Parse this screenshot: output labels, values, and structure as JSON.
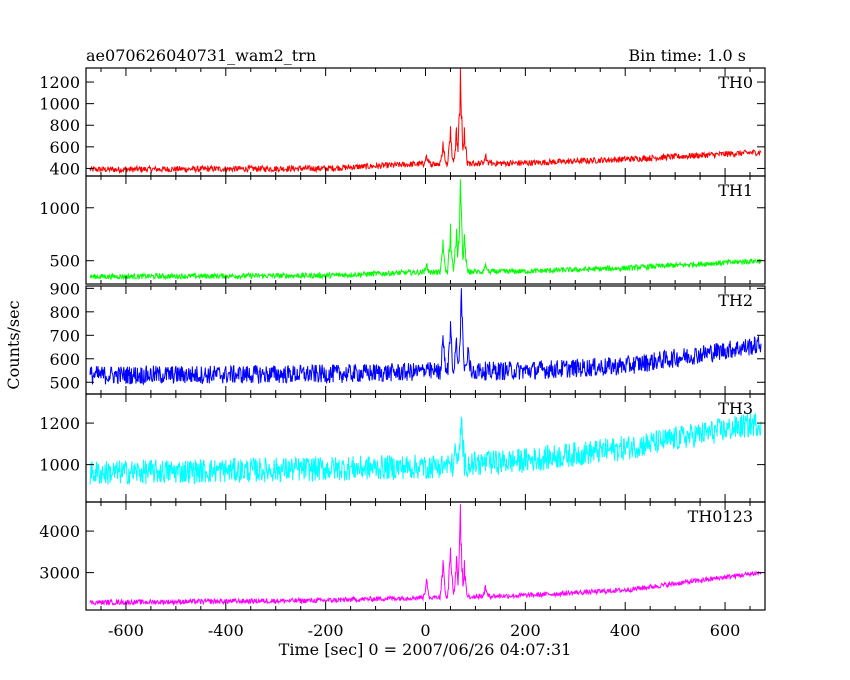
{
  "header": {
    "title": "ae070626040731_wam2_trn",
    "bin_time": "Bin time: 1.0 s"
  },
  "chart_data": {
    "type": "line",
    "xlabel": "Time [sec] 0 = 2007/06/26 04:07:31",
    "ylabel": "Counts/sec",
    "xlim": [
      -680,
      680
    ],
    "xticks": [
      -600,
      -400,
      -200,
      0,
      200,
      400,
      600
    ],
    "x_range": [
      -672,
      672
    ],
    "grid": false,
    "panels": [
      {
        "name": "TH0",
        "color": "#ff0000",
        "ylim": [
          330,
          1330
        ],
        "yticks": [
          400,
          600,
          800,
          1000,
          1200
        ],
        "baseline": [
          [
            -672,
            390
          ],
          [
            -200,
            400
          ],
          [
            -20,
            440
          ],
          [
            200,
            450
          ],
          [
            400,
            485
          ],
          [
            672,
            550
          ]
        ],
        "noise": 28,
        "peaks": [
          [
            2,
            520
          ],
          [
            35,
            650
          ],
          [
            50,
            790
          ],
          [
            62,
            780
          ],
          [
            70,
            1330
          ],
          [
            78,
            780
          ],
          [
            120,
            520
          ]
        ]
      },
      {
        "name": "TH1",
        "color": "#00ff00",
        "ylim": [
          280,
          1300
        ],
        "yticks": [
          500,
          1000
        ],
        "baseline": [
          [
            -672,
            350
          ],
          [
            -200,
            360
          ],
          [
            -20,
            390
          ],
          [
            200,
            400
          ],
          [
            400,
            430
          ],
          [
            672,
            500
          ]
        ],
        "noise": 25,
        "peaks": [
          [
            2,
            470
          ],
          [
            35,
            700
          ],
          [
            50,
            850
          ],
          [
            62,
            800
          ],
          [
            70,
            1270
          ],
          [
            78,
            750
          ],
          [
            120,
            470
          ]
        ]
      },
      {
        "name": "TH2",
        "color": "#0000ff",
        "ylim": [
          450,
          910
        ],
        "yticks": [
          500,
          600,
          700,
          800,
          900
        ],
        "baseline": [
          [
            -672,
            530
          ],
          [
            -200,
            535
          ],
          [
            0,
            545
          ],
          [
            200,
            550
          ],
          [
            400,
            570
          ],
          [
            672,
            660
          ]
        ],
        "noise": 40,
        "peaks": [
          [
            35,
            700
          ],
          [
            50,
            760
          ],
          [
            62,
            690
          ],
          [
            72,
            900
          ],
          [
            85,
            650
          ]
        ]
      },
      {
        "name": "TH3",
        "color": "#00ffff",
        "ylim": [
          820,
          1340
        ],
        "yticks": [
          1000,
          1200
        ],
        "baseline": [
          [
            -672,
            960
          ],
          [
            -200,
            980
          ],
          [
            0,
            990
          ],
          [
            200,
            1020
          ],
          [
            400,
            1080
          ],
          [
            672,
            1200
          ]
        ],
        "noise": 60,
        "peaks": [
          [
            60,
            1080
          ],
          [
            72,
            1230
          ]
        ]
      },
      {
        "name": "TH0123",
        "color": "#ff00ff",
        "ylim": [
          2100,
          4700
        ],
        "yticks": [
          3000,
          4000
        ],
        "baseline": [
          [
            -672,
            2280
          ],
          [
            -200,
            2330
          ],
          [
            -20,
            2400
          ],
          [
            200,
            2450
          ],
          [
            400,
            2580
          ],
          [
            672,
            3000
          ]
        ],
        "noise": 60,
        "peaks": [
          [
            2,
            2850
          ],
          [
            35,
            3300
          ],
          [
            50,
            3600
          ],
          [
            62,
            3400
          ],
          [
            70,
            4650
          ],
          [
            78,
            3300
          ],
          [
            120,
            2700
          ]
        ]
      }
    ]
  }
}
